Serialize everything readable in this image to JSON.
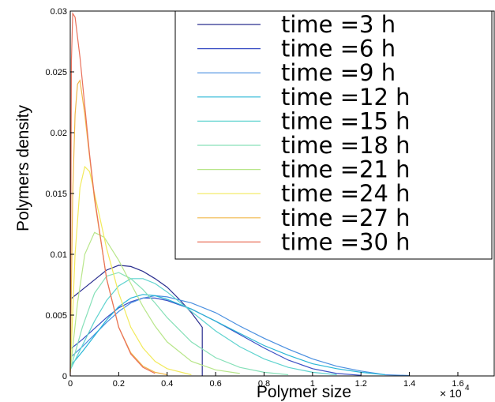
{
  "chart_data": {
    "type": "line",
    "title": "",
    "xlabel": "Polymer size",
    "ylabel": "Polymers density",
    "x_multiplier_base": "× 10",
    "x_multiplier_exp": "4",
    "xlim": [
      0,
      1.75
    ],
    "ylim": [
      0,
      0.03
    ],
    "x_ticks": [
      "0",
      "0.2",
      "0.4",
      "0.6",
      "0.8",
      "1",
      "1.2",
      "1.4",
      "1.6"
    ],
    "y_ticks": [
      "0",
      "0.005",
      "0.01",
      "0.015",
      "0.02",
      "0.025",
      "0.03"
    ],
    "grid": false,
    "legend_position": "top-right",
    "series": [
      {
        "name": "time =3 h",
        "color": "#2b2f8f",
        "points": [
          [
            0,
            0.0063
          ],
          [
            0.05,
            0.0071
          ],
          [
            0.1,
            0.0079
          ],
          [
            0.15,
            0.0087
          ],
          [
            0.2,
            0.0091
          ],
          [
            0.25,
            0.009
          ],
          [
            0.3,
            0.0086
          ],
          [
            0.35,
            0.008
          ],
          [
            0.4,
            0.0073
          ],
          [
            0.45,
            0.0063
          ],
          [
            0.5,
            0.0052
          ],
          [
            0.545,
            0.004
          ],
          [
            0.545,
            0.0
          ]
        ]
      },
      {
        "name": "time =6 h",
        "color": "#3a4fc4",
        "points": [
          [
            0,
            0.0022
          ],
          [
            0.05,
            0.003
          ],
          [
            0.1,
            0.0039
          ],
          [
            0.15,
            0.0048
          ],
          [
            0.2,
            0.0056
          ],
          [
            0.25,
            0.0061
          ],
          [
            0.3,
            0.0064
          ],
          [
            0.35,
            0.0064
          ],
          [
            0.4,
            0.0062
          ],
          [
            0.5,
            0.0055
          ],
          [
            0.6,
            0.0045
          ],
          [
            0.7,
            0.0034
          ],
          [
            0.8,
            0.0023
          ],
          [
            0.9,
            0.0013
          ],
          [
            1.0,
            0.0006
          ],
          [
            1.1,
            0.0002
          ],
          [
            1.2,
            5e-05
          ]
        ]
      },
      {
        "name": "time =9 h",
        "color": "#4a8fe0",
        "points": [
          [
            0,
            0.0015
          ],
          [
            0.05,
            0.0024
          ],
          [
            0.1,
            0.0034
          ],
          [
            0.15,
            0.0044
          ],
          [
            0.2,
            0.0053
          ],
          [
            0.25,
            0.006
          ],
          [
            0.3,
            0.0064
          ],
          [
            0.35,
            0.0066
          ],
          [
            0.4,
            0.0065
          ],
          [
            0.5,
            0.006
          ],
          [
            0.6,
            0.0052
          ],
          [
            0.7,
            0.0041
          ],
          [
            0.8,
            0.0031
          ],
          [
            0.9,
            0.0022
          ],
          [
            1.0,
            0.0014
          ],
          [
            1.1,
            0.0008
          ],
          [
            1.2,
            0.0004
          ],
          [
            1.3,
            0.0001
          ],
          [
            1.4,
            3e-05
          ]
        ]
      },
      {
        "name": "time =12 h",
        "color": "#29b6d6",
        "points": [
          [
            0,
            0.0008
          ],
          [
            0.05,
            0.002
          ],
          [
            0.1,
            0.0033
          ],
          [
            0.15,
            0.0046
          ],
          [
            0.2,
            0.0057
          ],
          [
            0.25,
            0.0064
          ],
          [
            0.3,
            0.0067
          ],
          [
            0.35,
            0.0066
          ],
          [
            0.4,
            0.0063
          ],
          [
            0.5,
            0.0055
          ],
          [
            0.6,
            0.0045
          ],
          [
            0.7,
            0.0035
          ],
          [
            0.8,
            0.0025
          ],
          [
            0.9,
            0.0017
          ],
          [
            1.0,
            0.001
          ],
          [
            1.1,
            0.0006
          ],
          [
            1.2,
            0.0003
          ],
          [
            1.3,
            0.0001
          ]
        ]
      },
      {
        "name": "time =15 h",
        "color": "#5fd3cf",
        "points": [
          [
            0,
            0.0005
          ],
          [
            0.05,
            0.0025
          ],
          [
            0.1,
            0.0045
          ],
          [
            0.15,
            0.0062
          ],
          [
            0.2,
            0.0074
          ],
          [
            0.25,
            0.008
          ],
          [
            0.3,
            0.008
          ],
          [
            0.35,
            0.0076
          ],
          [
            0.4,
            0.0069
          ],
          [
            0.5,
            0.0053
          ],
          [
            0.6,
            0.0037
          ],
          [
            0.7,
            0.0024
          ],
          [
            0.8,
            0.0014
          ],
          [
            0.9,
            0.0007
          ],
          [
            1.0,
            0.0003
          ],
          [
            1.1,
            0.0001
          ]
        ]
      },
      {
        "name": "time =18 h",
        "color": "#86e0b8",
        "points": [
          [
            0,
            0.0005
          ],
          [
            0.05,
            0.004
          ],
          [
            0.1,
            0.0068
          ],
          [
            0.15,
            0.0082
          ],
          [
            0.2,
            0.0085
          ],
          [
            0.25,
            0.008
          ],
          [
            0.3,
            0.0071
          ],
          [
            0.35,
            0.006
          ],
          [
            0.4,
            0.0048
          ],
          [
            0.5,
            0.0028
          ],
          [
            0.6,
            0.0015
          ],
          [
            0.7,
            0.0007
          ],
          [
            0.8,
            0.0003
          ],
          [
            0.9,
            0.0001
          ]
        ]
      },
      {
        "name": "time =21 h",
        "color": "#b8e68a",
        "points": [
          [
            0,
            0.0004
          ],
          [
            0.03,
            0.006
          ],
          [
            0.06,
            0.01
          ],
          [
            0.1,
            0.0118
          ],
          [
            0.14,
            0.0114
          ],
          [
            0.2,
            0.0095
          ],
          [
            0.25,
            0.0076
          ],
          [
            0.3,
            0.0057
          ],
          [
            0.35,
            0.0041
          ],
          [
            0.4,
            0.0028
          ],
          [
            0.5,
            0.0012
          ],
          [
            0.6,
            0.0005
          ],
          [
            0.7,
            0.0002
          ]
        ]
      },
      {
        "name": "time =24 h",
        "color": "#f2ea5c",
        "points": [
          [
            0,
            0.0003
          ],
          [
            0.02,
            0.01
          ],
          [
            0.04,
            0.0155
          ],
          [
            0.06,
            0.0172
          ],
          [
            0.08,
            0.0168
          ],
          [
            0.1,
            0.015
          ],
          [
            0.15,
            0.0105
          ],
          [
            0.2,
            0.0068
          ],
          [
            0.25,
            0.004
          ],
          [
            0.3,
            0.0023
          ],
          [
            0.35,
            0.0012
          ],
          [
            0.4,
            0.0006
          ],
          [
            0.5,
            0.0001
          ]
        ]
      },
      {
        "name": "time =27 h",
        "color": "#f0b74a",
        "points": [
          [
            0,
            0.0003
          ],
          [
            0.01,
            0.015
          ],
          [
            0.02,
            0.0215
          ],
          [
            0.03,
            0.024
          ],
          [
            0.04,
            0.0243
          ],
          [
            0.06,
            0.0215
          ],
          [
            0.08,
            0.018
          ],
          [
            0.1,
            0.0145
          ],
          [
            0.15,
            0.008
          ],
          [
            0.2,
            0.004
          ],
          [
            0.25,
            0.0019
          ],
          [
            0.3,
            0.0008
          ],
          [
            0.35,
            0.0003
          ],
          [
            0.4,
            0.0001
          ]
        ]
      },
      {
        "name": "time =30 h",
        "color": "#e9705a",
        "points": [
          [
            0,
            0.0
          ],
          [
            0.005,
            0.026
          ],
          [
            0.01,
            0.0298
          ],
          [
            0.02,
            0.0295
          ],
          [
            0.04,
            0.0262
          ],
          [
            0.06,
            0.0222
          ],
          [
            0.08,
            0.0182
          ],
          [
            0.1,
            0.0147
          ],
          [
            0.15,
            0.008
          ],
          [
            0.2,
            0.004
          ],
          [
            0.25,
            0.0018
          ],
          [
            0.3,
            0.0007
          ],
          [
            0.35,
            0.0002
          ]
        ]
      }
    ]
  }
}
